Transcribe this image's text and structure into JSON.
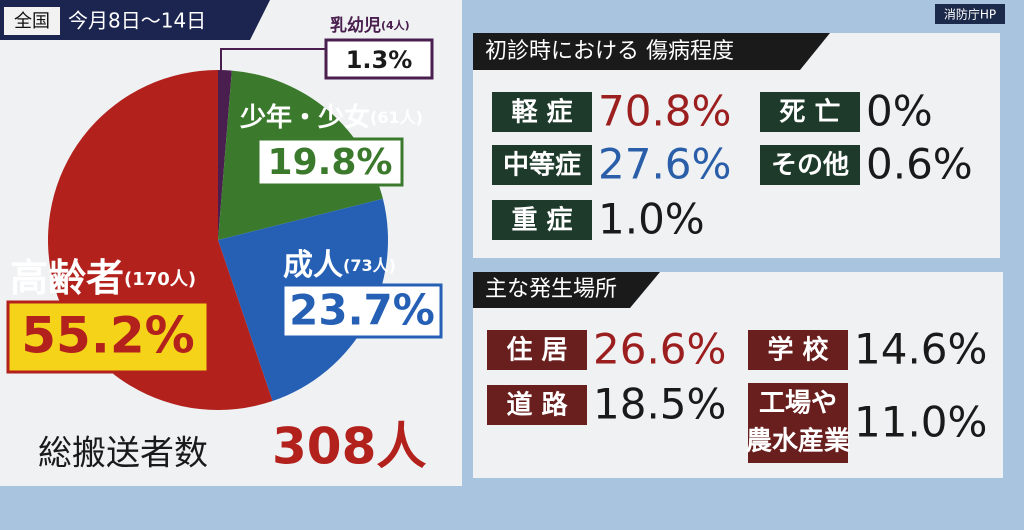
{
  "header": {
    "region": "全国",
    "period": "今月8日～14日",
    "source": "消防庁HP"
  },
  "chart_data": {
    "type": "pie",
    "categories": [
      "乳幼児",
      "少年・少女",
      "成人",
      "高齢者"
    ],
    "count_labels": [
      "(4人)",
      "(61人)",
      "(73人)",
      "(170人)"
    ],
    "values": [
      1.3,
      19.8,
      23.7,
      55.2
    ],
    "value_labels": [
      "1.3%",
      "19.8%",
      "23.7%",
      "55.2%"
    ],
    "colors": [
      "#4a1f4f",
      "#3b7a2c",
      "#2560b5",
      "#b3211d"
    ],
    "total_label": "総搬送者数",
    "total": "308人"
  },
  "severity": {
    "title": "初診時における 傷病程度",
    "items": [
      {
        "label": [
          "軽 症"
        ],
        "value": "70.8%",
        "color": "#9c1f1f"
      },
      {
        "label": [
          "中等症"
        ],
        "value": "27.6%",
        "color": "#2a5ea8"
      },
      {
        "label": [
          "重 症"
        ],
        "value": "1.0%",
        "color": "#1a1a1a"
      },
      {
        "label": [
          "死 亡"
        ],
        "value": "0%",
        "color": "#1a1a1a"
      },
      {
        "label": [
          "その他"
        ],
        "value": "0.6%",
        "color": "#1a1a1a"
      }
    ]
  },
  "places": {
    "title": "主な発生場所",
    "items": [
      {
        "label": [
          "住 居"
        ],
        "value": "26.6%",
        "color": "#9c1f1f"
      },
      {
        "label": [
          "道 路"
        ],
        "value": "18.5%",
        "color": "#1a1a1a"
      },
      {
        "label": [
          "学 校"
        ],
        "value": "14.6%",
        "color": "#1a1a1a"
      },
      {
        "label": [
          "工場や",
          "農水産業"
        ],
        "value": "11.0%",
        "color": "#1a1a1a"
      }
    ]
  }
}
